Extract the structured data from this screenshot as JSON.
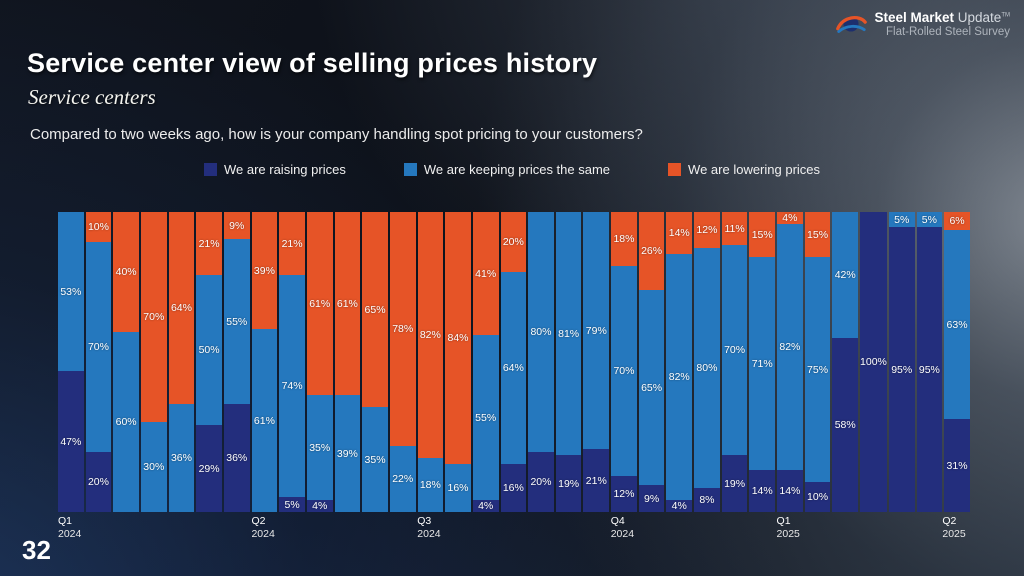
{
  "page": {
    "number": "32"
  },
  "header": {
    "title": "Service center view of selling prices history",
    "subtitle": "Service centers",
    "question": "Compared to two weeks ago, how is your company handling spot pricing to your customers?"
  },
  "logo": {
    "name_bold": "Steel Market",
    "name_regular": "Update",
    "trademark": "TM",
    "tagline": "Flat-Rolled Steel Survey"
  },
  "colors": {
    "raising": "#232e7d",
    "keeping": "#2578be",
    "lowering": "#e65427"
  },
  "chart_data": {
    "type": "bar",
    "stacked": true,
    "unit": "%",
    "ylim": [
      0,
      100
    ],
    "grid": false,
    "legend_position": "top",
    "label_min_value": 4,
    "series": [
      {
        "name": "We are raising prices",
        "color_key": "raising",
        "values": [
          47,
          20,
          0,
          0,
          0,
          29,
          36,
          0,
          5,
          4,
          0,
          0,
          0,
          0,
          0,
          4,
          16,
          20,
          19,
          21,
          12,
          9,
          4,
          8,
          19,
          14,
          14,
          10,
          58,
          100,
          95,
          95,
          31
        ]
      },
      {
        "name": "We are keeping prices the same",
        "color_key": "keeping",
        "values": [
          53,
          70,
          60,
          30,
          36,
          50,
          55,
          61,
          74,
          35,
          39,
          35,
          22,
          18,
          16,
          55,
          64,
          80,
          81,
          79,
          70,
          65,
          82,
          80,
          70,
          71,
          82,
          75,
          42,
          0,
          5,
          5,
          63
        ]
      },
      {
        "name": "We are lowering prices",
        "color_key": "lowering",
        "values": [
          0,
          10,
          40,
          70,
          64,
          21,
          9,
          39,
          21,
          61,
          61,
          65,
          78,
          82,
          84,
          41,
          20,
          0,
          0,
          0,
          18,
          26,
          14,
          12,
          11,
          15,
          4,
          15,
          0,
          0,
          0,
          0,
          6
        ]
      }
    ],
    "x_ticks": [
      {
        "label": "Q1",
        "year": "2024",
        "bar_index": 0
      },
      {
        "label": "Q2",
        "year": "2024",
        "bar_index": 7
      },
      {
        "label": "Q3",
        "year": "2024",
        "bar_index": 13
      },
      {
        "label": "Q4",
        "year": "2024",
        "bar_index": 20
      },
      {
        "label": "Q1",
        "year": "2025",
        "bar_index": 26
      },
      {
        "label": "Q2",
        "year": "2025",
        "bar_index": 32
      }
    ]
  }
}
